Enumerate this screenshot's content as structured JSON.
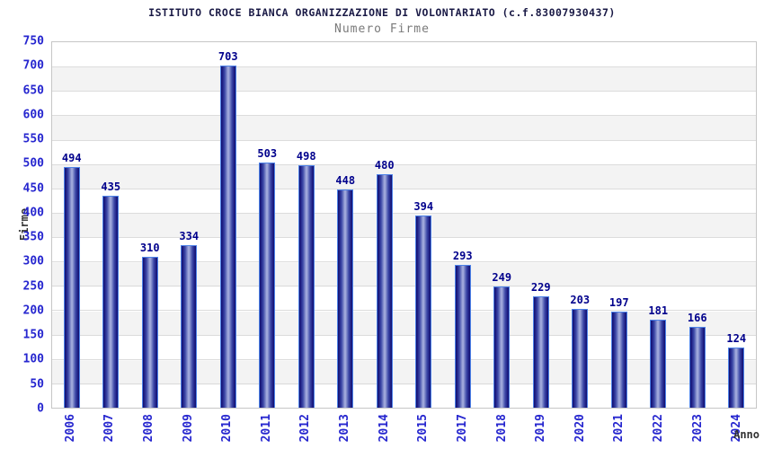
{
  "chart_data": {
    "type": "bar",
    "title": "ISTITUTO CROCE BIANCA ORGANIZZAZIONE DI VOLONTARIATO (c.f.83007930437)",
    "subtitle": "Numero Firme",
    "xlabel": "Anno",
    "ylabel": "Firme",
    "categories": [
      "2006",
      "2007",
      "2008",
      "2009",
      "2010",
      "2011",
      "2012",
      "2013",
      "2014",
      "2015",
      "2017",
      "2018",
      "2019",
      "2020",
      "2021",
      "2022",
      "2023",
      "2024"
    ],
    "values": [
      494,
      435,
      310,
      334,
      703,
      503,
      498,
      448,
      480,
      394,
      293,
      249,
      229,
      203,
      197,
      181,
      166,
      124
    ],
    "ylim": [
      0,
      750
    ],
    "ytick_step": 50,
    "grid": "horizontal-bands",
    "legend": "none",
    "colors": {
      "title": "#191945",
      "subtitle": "#7a7a7a",
      "tick_labels": "#2626cf",
      "value_labels": "#00008c",
      "axis_titles": "#333333",
      "bar_border": "#4d82e8",
      "bar_fill_edge": "#10106e",
      "bar_fill_center": "#a8b0e0",
      "band": "#f3f3f3",
      "grid": "#dcdcdc",
      "background": "#ffffff"
    }
  }
}
